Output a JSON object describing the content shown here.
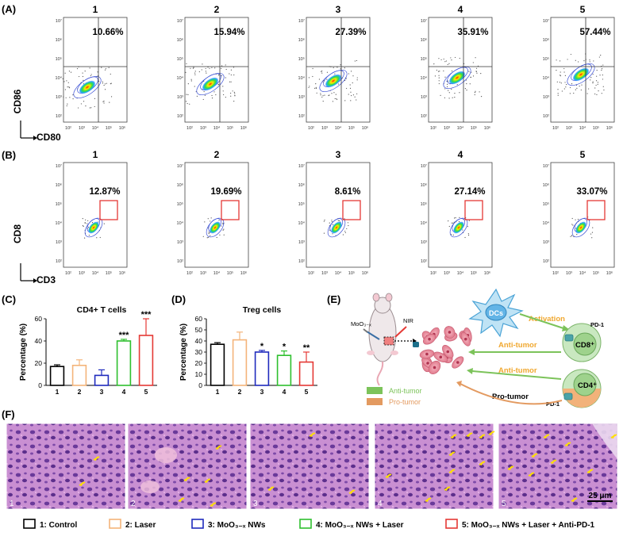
{
  "panelA": {
    "label": "(A)",
    "ylabel": "CD86",
    "xlabel": "CD80",
    "plots": [
      {
        "title": "1",
        "value": "10.66%"
      },
      {
        "title": "2",
        "value": "15.94%"
      },
      {
        "title": "3",
        "value": "27.39%"
      },
      {
        "title": "4",
        "value": "35.91%"
      },
      {
        "title": "5",
        "value": "57.44%"
      }
    ]
  },
  "panelB": {
    "label": "(B)",
    "ylabel": "CD8",
    "xlabel": "CD3",
    "plots": [
      {
        "title": "1",
        "value": "12.87%"
      },
      {
        "title": "2",
        "value": "19.69%"
      },
      {
        "title": "3",
        "value": "8.61%"
      },
      {
        "title": "4",
        "value": "27.14%"
      },
      {
        "title": "5",
        "value": "33.07%"
      }
    ]
  },
  "flow_ticks": {
    "x": [
      "10²",
      "10³",
      "10⁴",
      "10⁵",
      "10⁶"
    ],
    "y": [
      "10²",
      "10³",
      "10⁴",
      "10⁵",
      "10⁶",
      "10⁷"
    ]
  },
  "chart_data": [
    {
      "type": "bar",
      "panel": "(C)",
      "title": "CD4+ T cells",
      "ylabel": "Percentage (%)",
      "categories": [
        "1",
        "2",
        "3",
        "4",
        "5"
      ],
      "values": [
        17,
        18,
        9,
        40,
        45
      ],
      "errors": [
        1.5,
        5,
        5,
        1.5,
        15
      ],
      "significance": [
        "",
        "",
        "",
        "***",
        "***"
      ],
      "yticks": [
        "0",
        "20",
        "40",
        "60"
      ],
      "ylim": [
        0,
        60
      ],
      "colors": [
        "#000000",
        "#f4b47a",
        "#1f2bbd",
        "#2ec02e",
        "#e53935"
      ]
    },
    {
      "type": "bar",
      "panel": "(D)",
      "title": "Treg cells",
      "ylabel": "Percentage (%)",
      "categories": [
        "1",
        "2",
        "3",
        "4",
        "5"
      ],
      "values": [
        37,
        41,
        30,
        27,
        21
      ],
      "errors": [
        1.5,
        7,
        1.5,
        4,
        9
      ],
      "significance": [
        "",
        "",
        "*",
        "*",
        "**"
      ],
      "yticks": [
        "0",
        "10",
        "20",
        "30",
        "40",
        "50",
        "60"
      ],
      "ylim": [
        0,
        60
      ],
      "colors": [
        "#000000",
        "#f4b47a",
        "#1f2bbd",
        "#2ec02e",
        "#e53935"
      ]
    }
  ],
  "panelE": {
    "label": "(E)",
    "moo3": "MoO₃₋ₓ",
    "nir": "NIR",
    "dcs": "DCs",
    "activation": "Activation",
    "pd1_top": "PD-1",
    "cd8": "CD8⁺",
    "anti_tumor_1": "Anti-tumor",
    "anti_tumor_2": "Anti-tumor",
    "pd1_bottom": "PD-1",
    "cd4": "CD4⁺",
    "pro_tumor": "Pro-tumor",
    "legend_anti": "Anti-tumor",
    "legend_pro": "Pro-tumor",
    "colors": {
      "green": "#7cc35a",
      "orange": "#e39a60",
      "label_orange": "#f0a830",
      "label_green": "#7cc35a"
    }
  },
  "panelF": {
    "label": "(F)",
    "images": [
      "1",
      "2",
      "3",
      "4",
      "5"
    ],
    "scalebar": "25 μm"
  },
  "legend": [
    {
      "text": "1: Control",
      "color": "#000000"
    },
    {
      "text": "2: Laser",
      "color": "#f4b47a"
    },
    {
      "text": "3: MoO₃₋ₓ NWs",
      "color": "#1f2bbd"
    },
    {
      "text": "4: MoO₃₋ₓ NWs + Laser",
      "color": "#2ec02e"
    },
    {
      "text": "5: MoO₃₋ₓ NWs + Laser + Anti-PD-1",
      "color": "#e53935"
    }
  ]
}
